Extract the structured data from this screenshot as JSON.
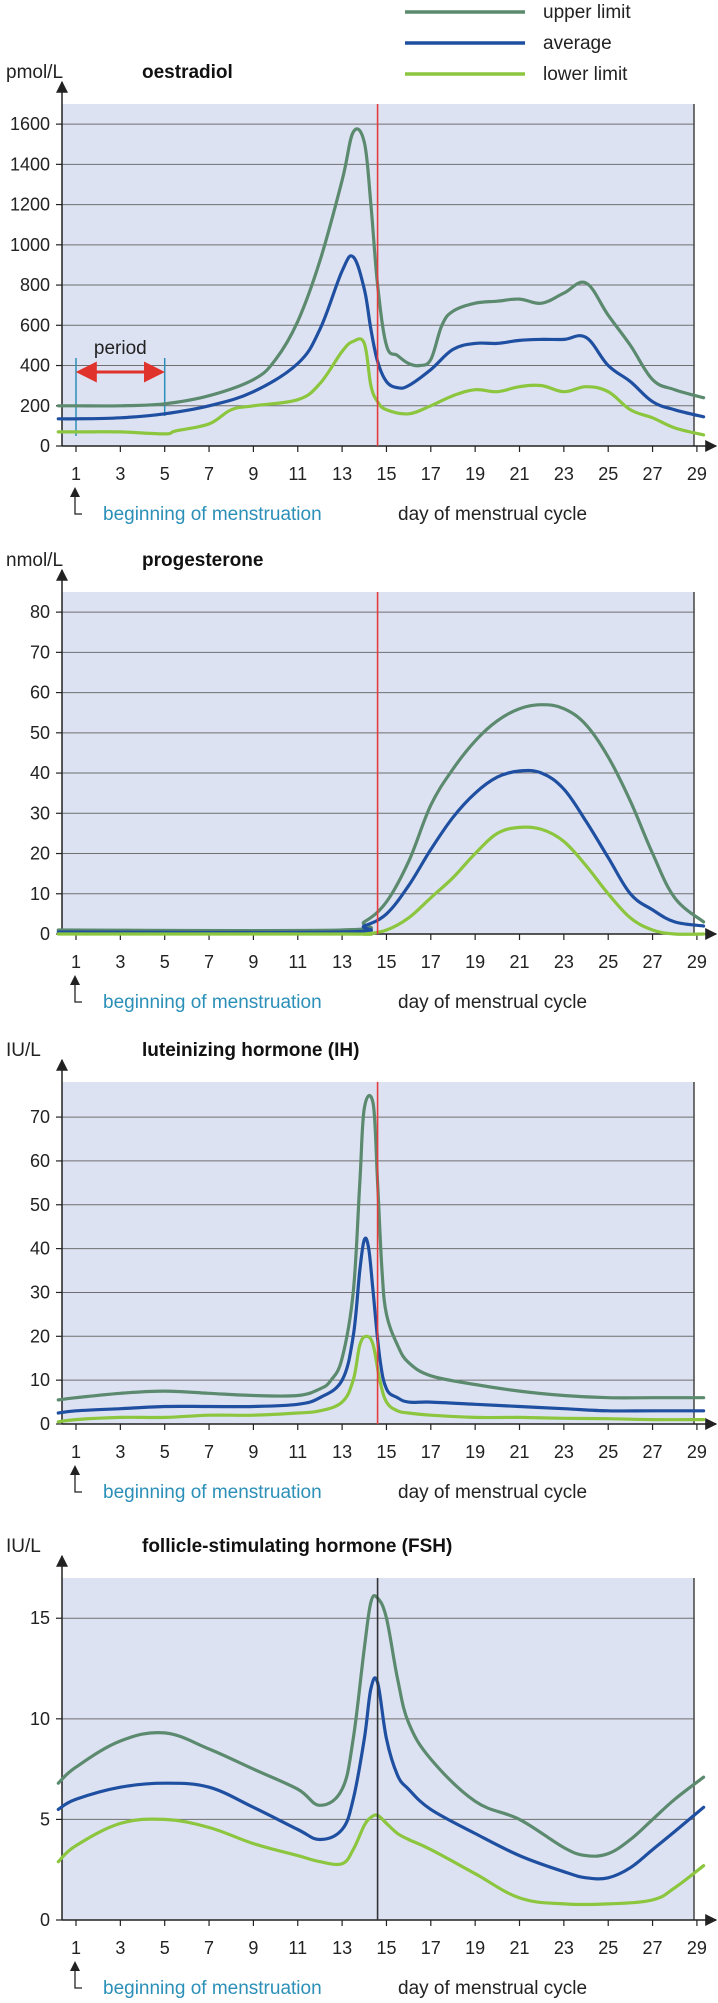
{
  "legend": {
    "placement": "top-right",
    "items": [
      {
        "key": "upper",
        "label": "upper limit",
        "color": "#5b8a6e"
      },
      {
        "key": "average",
        "label": "average",
        "color": "#1f4fa0"
      },
      {
        "key": "lower",
        "label": "lower  limit",
        "color": "#8cc63f"
      }
    ]
  },
  "colors": {
    "plot_background": "#dde2f3",
    "grid": "#6f6f6f",
    "ovulation_line": "#e53b3b",
    "period_arrow": "#e0332b",
    "period_bracket": "#2b8fb8",
    "menstruation_text": "#2b8fb8",
    "axis": "#222222"
  },
  "x_axis": {
    "ticks": [
      "1",
      "3",
      "5",
      "7",
      "9",
      "11",
      "13",
      "15",
      "17",
      "19",
      "21",
      "23",
      "25",
      "27",
      "29"
    ],
    "label": "day of menstrual cycle",
    "start_marker_label": "beginning of menstruation",
    "range": [
      1,
      29.5
    ]
  },
  "chart_data": [
    {
      "type": "line",
      "title": "oestradiol",
      "ylabel": "pmol/L",
      "ylim": [
        0,
        1700
      ],
      "yticks": [
        "0",
        "200",
        "400",
        "600",
        "800",
        "1000",
        "1200",
        "1400",
        "1600"
      ],
      "ytick_values": [
        0,
        200,
        400,
        600,
        800,
        1000,
        1200,
        1400,
        1600
      ],
      "grid": true,
      "marker_day": 14.6,
      "marker_color": "#e53b3b",
      "annotation": {
        "label": "period",
        "from_day": 1,
        "to_day": 5
      },
      "series": [
        {
          "name": "upper limit",
          "key": "upper",
          "x": [
            0.2,
            1,
            3,
            5,
            7,
            9,
            10,
            11,
            12,
            13,
            13.5,
            14,
            14.3,
            14.6,
            15,
            15.5,
            16,
            16.5,
            17,
            17.5,
            18,
            19,
            20,
            21,
            22,
            23,
            24,
            25,
            26,
            27,
            28,
            29.3
          ],
          "y": [
            200,
            200,
            200,
            210,
            250,
            330,
            430,
            620,
            920,
            1320,
            1560,
            1510,
            1200,
            800,
            500,
            450,
            410,
            400,
            430,
            600,
            670,
            710,
            720,
            730,
            710,
            760,
            810,
            650,
            500,
            330,
            280,
            240
          ]
        },
        {
          "name": "average",
          "key": "average",
          "x": [
            0.2,
            1,
            3,
            5,
            7,
            9,
            11,
            12,
            13,
            13.5,
            14,
            14.3,
            14.6,
            15,
            15.5,
            16,
            17,
            18,
            19,
            20,
            21,
            22,
            23,
            24,
            25,
            26,
            27,
            28,
            29.3
          ],
          "y": [
            135,
            135,
            140,
            160,
            200,
            270,
            410,
            580,
            870,
            940,
            780,
            580,
            420,
            320,
            290,
            300,
            380,
            480,
            510,
            510,
            525,
            530,
            530,
            540,
            400,
            320,
            220,
            180,
            145
          ]
        },
        {
          "name": "lower  limit",
          "key": "lower",
          "x": [
            0.2,
            1,
            3,
            5,
            5.5,
            7,
            8,
            9,
            11,
            12,
            13,
            13.5,
            14,
            14.3,
            14.6,
            15,
            16,
            17,
            18,
            19,
            20,
            21,
            22,
            23,
            24,
            25,
            26,
            27,
            28,
            29.3
          ],
          "y": [
            70,
            70,
            70,
            60,
            75,
            110,
            180,
            200,
            230,
            310,
            470,
            520,
            510,
            300,
            220,
            180,
            160,
            200,
            250,
            280,
            270,
            295,
            300,
            270,
            295,
            270,
            180,
            140,
            90,
            55
          ]
        }
      ]
    },
    {
      "type": "line",
      "title": "progesterone",
      "ylabel": "nmol/L",
      "ylim": [
        0,
        85
      ],
      "yticks": [
        "0",
        "10",
        "20",
        "30",
        "40",
        "50",
        "60",
        "70",
        "80"
      ],
      "ytick_values": [
        0,
        10,
        20,
        30,
        40,
        50,
        60,
        70,
        80
      ],
      "grid": true,
      "marker_day": 14.6,
      "marker_color": "#e53b3b",
      "series": [
        {
          "name": "upper limit",
          "key": "upper",
          "x": [
            0.2,
            13,
            14,
            15,
            16,
            17,
            18,
            19,
            20,
            21,
            22,
            23,
            24,
            25,
            26,
            27,
            28,
            29.3
          ],
          "y": [
            1,
            1,
            3,
            8,
            18,
            32,
            41,
            48,
            53,
            56,
            57,
            56,
            52,
            44,
            33,
            20,
            9,
            3
          ]
        },
        {
          "name": "average",
          "key": "average",
          "x": [
            0.2,
            13,
            14,
            15,
            16,
            17,
            18,
            19,
            20,
            21,
            22,
            23,
            24,
            25,
            26,
            27,
            28,
            29.3
          ],
          "y": [
            0.5,
            0.5,
            2,
            5,
            12,
            21,
            29,
            35,
            39,
            40.5,
            40,
            36,
            28,
            19,
            10,
            6,
            3,
            2
          ]
        },
        {
          "name": "lower  limit",
          "key": "lower",
          "x": [
            0.2,
            13,
            14,
            15,
            16,
            17,
            18,
            19,
            20,
            21,
            22,
            23,
            24,
            25,
            26,
            27,
            28,
            29.3
          ],
          "y": [
            0,
            0,
            0,
            1,
            4,
            9,
            14,
            20,
            25,
            26.5,
            26,
            23,
            17,
            10,
            4,
            1,
            0,
            0
          ]
        }
      ]
    },
    {
      "type": "line",
      "title": "luteinizing hormone (IH)",
      "ylabel": "IU/L",
      "ylim": [
        0,
        78
      ],
      "yticks": [
        "0",
        "10",
        "20",
        "30",
        "40",
        "50",
        "60",
        "70"
      ],
      "ytick_values": [
        0,
        10,
        20,
        30,
        40,
        50,
        60,
        70
      ],
      "grid": true,
      "marker_day": 14.6,
      "marker_color": "#e53b3b",
      "series": [
        {
          "name": "upper limit",
          "key": "upper",
          "x": [
            0.2,
            1,
            3,
            5,
            7,
            9,
            11,
            12,
            12.5,
            13,
            13.5,
            13.8,
            14,
            14.4,
            14.6,
            14.8,
            15,
            15.5,
            16,
            17,
            19,
            21,
            23,
            25,
            27,
            29.3
          ],
          "y": [
            5.5,
            6,
            7,
            7.5,
            7,
            6.5,
            6.5,
            8,
            10,
            15,
            30,
            55,
            72,
            73,
            55,
            35,
            25,
            18,
            14,
            11,
            9,
            7.5,
            6.5,
            6,
            6,
            6
          ]
        },
        {
          "name": "average",
          "key": "average",
          "x": [
            0.2,
            1,
            3,
            5,
            7,
            9,
            11,
            12,
            13,
            13.5,
            13.8,
            14,
            14.2,
            14.4,
            14.7,
            15,
            15.5,
            16,
            17,
            19,
            21,
            23,
            25,
            27,
            29.3
          ],
          "y": [
            2.5,
            3,
            3.5,
            4,
            4,
            4,
            4.5,
            6,
            10,
            20,
            35,
            42,
            40,
            30,
            15,
            8,
            6,
            5,
            5,
            4.5,
            4,
            3.5,
            3,
            3,
            3
          ]
        },
        {
          "name": "lower  limit",
          "key": "lower",
          "x": [
            0.2,
            1,
            3,
            5,
            7,
            9,
            11,
            12,
            13,
            13.5,
            13.8,
            14.1,
            14.4,
            14.7,
            15,
            15.5,
            16,
            17,
            19,
            21,
            23,
            25,
            27,
            29.3
          ],
          "y": [
            0.5,
            1,
            1.5,
            1.5,
            2,
            2,
            2.5,
            3,
            5,
            10,
            18,
            20,
            18,
            10,
            5,
            3,
            2.5,
            2,
            1.5,
            1.5,
            1.3,
            1.2,
            1,
            1
          ]
        }
      ]
    },
    {
      "type": "line",
      "title": "follicle-stimulating hormone (FSH)",
      "ylabel": "IU/L",
      "ylim": [
        0,
        17
      ],
      "yticks": [
        "0",
        "5",
        "10",
        "15"
      ],
      "ytick_values": [
        0,
        5,
        10,
        15
      ],
      "grid": true,
      "marker_day": 14.6,
      "marker_color": "#333333",
      "series": [
        {
          "name": "upper limit",
          "key": "upper",
          "x": [
            0.2,
            1,
            3,
            5,
            7,
            9,
            11,
            12,
            13,
            13.5,
            14,
            14.3,
            14.6,
            15,
            15.5,
            16,
            17,
            19,
            21,
            23,
            24,
            25,
            26,
            27,
            28,
            29.3
          ],
          "y": [
            6.8,
            7.6,
            8.9,
            9.3,
            8.5,
            7.5,
            6.5,
            5.7,
            6.5,
            9,
            13.5,
            15.8,
            16,
            15,
            12,
            9.8,
            8,
            5.9,
            5,
            3.6,
            3.2,
            3.3,
            4,
            5,
            6,
            7.1
          ]
        },
        {
          "name": "average",
          "key": "average",
          "x": [
            0.2,
            1,
            3,
            5,
            7,
            9,
            11,
            12,
            13,
            13.5,
            14,
            14.3,
            14.6,
            15,
            15.5,
            16,
            17,
            19,
            21,
            23,
            24,
            25,
            26,
            27,
            28,
            29.3
          ],
          "y": [
            5.5,
            6,
            6.6,
            6.8,
            6.6,
            5.6,
            4.5,
            4,
            4.5,
            6,
            9,
            11.5,
            11.8,
            9,
            7.2,
            6.5,
            5.5,
            4.3,
            3.2,
            2.4,
            2.1,
            2.1,
            2.6,
            3.5,
            4.4,
            5.6
          ]
        },
        {
          "name": "lower  limit",
          "key": "lower",
          "x": [
            0.2,
            1,
            3,
            5,
            7,
            9,
            11,
            12,
            13,
            13.5,
            14,
            14.3,
            14.6,
            15,
            15.5,
            16,
            17,
            19,
            21,
            23,
            25,
            27,
            28,
            29.3
          ],
          "y": [
            2.9,
            3.7,
            4.8,
            5,
            4.6,
            3.8,
            3.2,
            2.9,
            2.8,
            3.5,
            4.7,
            5.1,
            5.2,
            4.8,
            4.3,
            4,
            3.5,
            2.3,
            1.1,
            0.8,
            0.8,
            1,
            1.6,
            2.7
          ]
        }
      ]
    }
  ]
}
